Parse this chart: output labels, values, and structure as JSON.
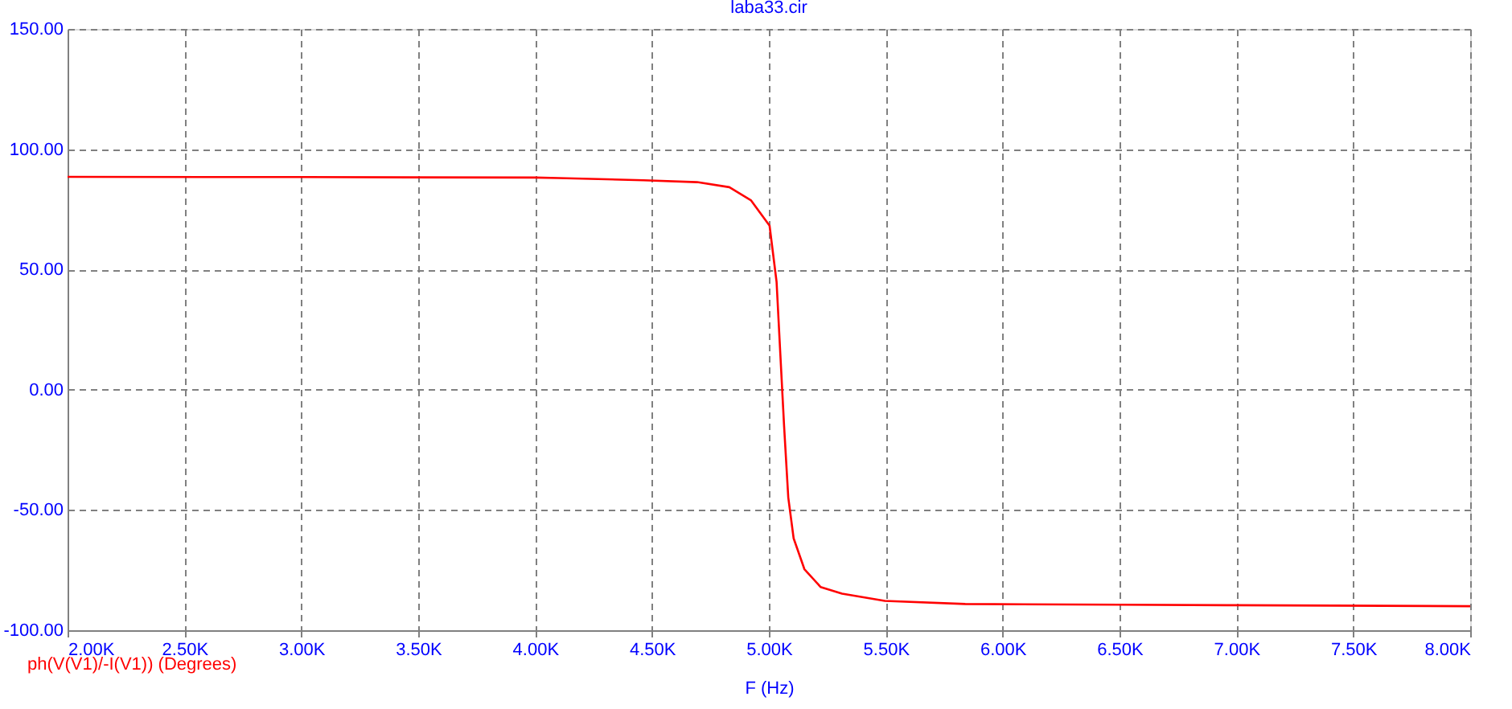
{
  "chart_data": {
    "type": "line",
    "title": "laba33.cir",
    "xlabel": "F (Hz)",
    "x": [
      2000,
      3000,
      4000,
      4100,
      4464,
      4693,
      4831,
      4923,
      5003,
      5033,
      5049,
      5065,
      5083,
      5106,
      5152,
      5221,
      5313,
      5496,
      5840,
      6500,
      7000,
      8000
    ],
    "series": [
      {
        "name": "ph(V(V1)/-I(V1)) (Degrees)",
        "color": "#ff0000",
        "values": [
          88.5,
          88.4,
          88.2,
          88,
          87.1,
          86.3,
          84.2,
          78.8,
          68.2,
          44.8,
          14.9,
          -14.9,
          -44.8,
          -61.8,
          -74.6,
          -82.0,
          -84.8,
          -87.8,
          -89.1,
          -89.4,
          -89.6,
          -90.0
        ]
      }
    ],
    "xlim": [
      2000,
      8000
    ],
    "xticks": [
      {
        "value": 2000,
        "label": "2.00K"
      },
      {
        "value": 2500,
        "label": "2.50K"
      },
      {
        "value": 3000,
        "label": "3.00K"
      },
      {
        "value": 3500,
        "label": "3.50K"
      },
      {
        "value": 4000,
        "label": "4.00K"
      },
      {
        "value": 4500,
        "label": "4.50K"
      },
      {
        "value": 5000,
        "label": "5.00K"
      },
      {
        "value": 5500,
        "label": "5.50K"
      },
      {
        "value": 6000,
        "label": "6.00K"
      },
      {
        "value": 6500,
        "label": "6.50K"
      },
      {
        "value": 7000,
        "label": "7.00K"
      },
      {
        "value": 7500,
        "label": "7.50K"
      },
      {
        "value": 8000,
        "label": "8.00K"
      }
    ],
    "ylim": [
      -100,
      150
    ],
    "yticks": [
      {
        "value": -100,
        "label": "-100.00"
      },
      {
        "value": -50,
        "label": "-50.00"
      },
      {
        "value": 0,
        "label": "0.00"
      },
      {
        "value": 50,
        "label": "50.00"
      },
      {
        "value": 100,
        "label": "100.00"
      },
      {
        "value": 150,
        "label": "150.00"
      }
    ],
    "grid": true,
    "legend": "bottom left",
    "line_style": "solid",
    "marker": "none"
  }
}
